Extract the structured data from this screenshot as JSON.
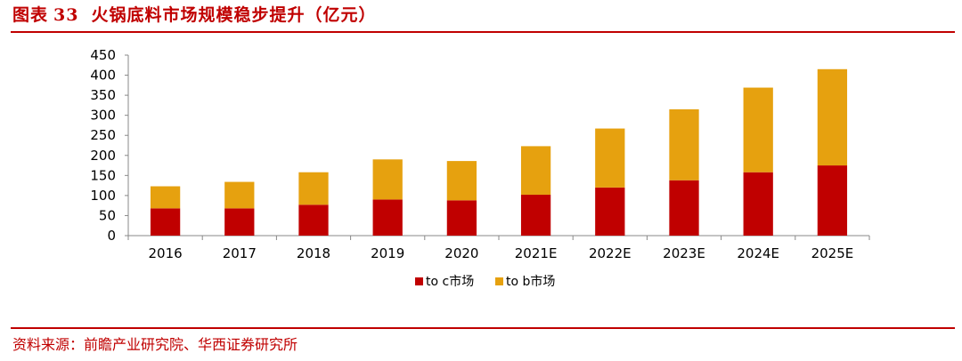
{
  "header": {
    "figure_label": "图表",
    "figure_number": "33",
    "title": "火锅底料市场规模稳步提升（亿元）"
  },
  "footer": {
    "source": "资料来源：前瞻产业研究院、华西证券研究所"
  },
  "colors": {
    "brand": "#c00000",
    "series_c": "#c00000",
    "series_b": "#e6a10f",
    "axis": "#888888"
  },
  "chart_data": {
    "type": "bar",
    "stacked": true,
    "title": "火锅底料市场规模稳步提升（亿元）",
    "categories": [
      "2016",
      "2017",
      "2018",
      "2019",
      "2020",
      "2021E",
      "2022E",
      "2023E",
      "2024E",
      "2025E"
    ],
    "series": [
      {
        "name": "to c市场",
        "values": [
          68,
          68,
          77,
          90,
          88,
          102,
          120,
          138,
          158,
          175
        ]
      },
      {
        "name": "to b市场",
        "values": [
          55,
          66,
          81,
          100,
          98,
          121,
          147,
          177,
          211,
          240
        ]
      }
    ],
    "yticks": [
      "0",
      "50",
      "100",
      "150",
      "200",
      "250",
      "300",
      "350",
      "400",
      "450"
    ],
    "ylim": [
      0,
      450
    ],
    "xlabel": "",
    "ylabel": "",
    "grid": false,
    "legend_position": "bottom-center"
  }
}
